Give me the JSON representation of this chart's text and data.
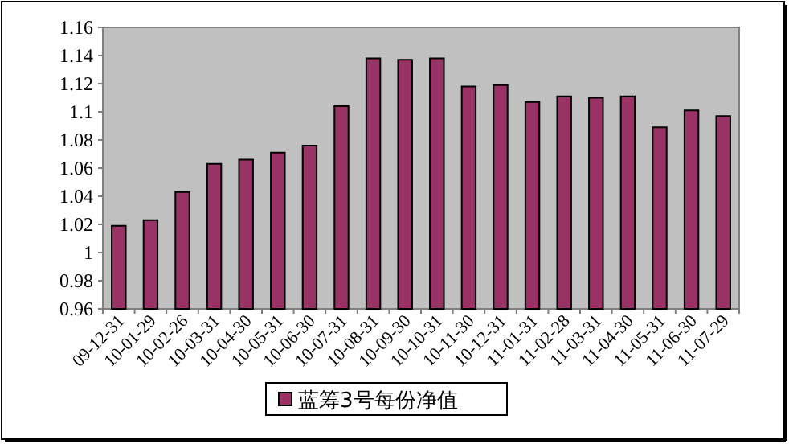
{
  "chart_data": {
    "type": "bar",
    "categories": [
      "09-12-31",
      "10-01-29",
      "10-02-26",
      "10-03-31",
      "10-04-30",
      "10-05-31",
      "10-06-30",
      "10-07-31",
      "10-08-31",
      "10-09-30",
      "10-10-31",
      "10-11-30",
      "10-12-31",
      "11-01-31",
      "11-02-28",
      "11-03-31",
      "11-04-30",
      "11-05-31",
      "11-06-30",
      "11-07-29"
    ],
    "series": [
      {
        "name": "蓝筹3号每份净值",
        "color": "#993366",
        "values": [
          1.019,
          1.023,
          1.043,
          1.063,
          1.066,
          1.071,
          1.076,
          1.104,
          1.138,
          1.137,
          1.138,
          1.118,
          1.119,
          1.107,
          1.111,
          1.11,
          1.111,
          1.089,
          1.101,
          1.097
        ]
      }
    ],
    "ylim": [
      0.96,
      1.16
    ],
    "yticks": [
      0.96,
      0.98,
      1,
      1.02,
      1.04,
      1.06,
      1.08,
      1.1,
      1.12,
      1.14,
      1.16
    ],
    "grid": false,
    "legend": "bottom"
  }
}
